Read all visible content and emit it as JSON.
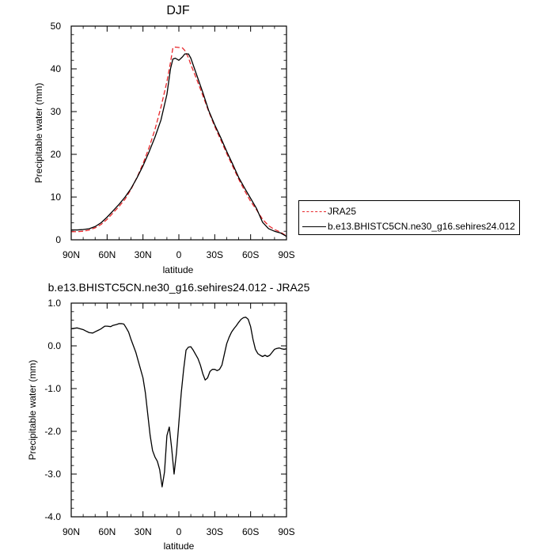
{
  "chart_data": [
    {
      "type": "line",
      "title": "DJF",
      "xlabel": "latitude",
      "ylabel": "Precipitable water (mm)",
      "xlim": [
        90,
        -90
      ],
      "ylim": [
        0,
        50
      ],
      "x_ticks": [
        90,
        60,
        30,
        0,
        -30,
        -60,
        -90
      ],
      "x_tick_labels": [
        "90N",
        "60N",
        "30N",
        "0",
        "30S",
        "60S",
        "90S"
      ],
      "y_ticks": [
        0,
        10,
        20,
        30,
        40,
        50
      ],
      "y_tick_labels": [
        "0",
        "10",
        "20",
        "30",
        "40",
        "50"
      ],
      "legend": "right",
      "series": [
        {
          "name": "JRA25",
          "color": "#e8262a",
          "dash": true,
          "x": [
            90,
            85,
            80,
            75,
            70,
            65,
            60,
            55,
            50,
            45,
            40,
            35,
            30,
            25,
            20,
            15,
            10,
            7,
            5,
            3,
            0,
            -3,
            -5,
            -8,
            -10,
            -15,
            -20,
            -25,
            -30,
            -35,
            -40,
            -45,
            -50,
            -55,
            -60,
            -65,
            -70,
            -75,
            -80,
            -85,
            -90
          ],
          "y": [
            1.9,
            1.9,
            2.0,
            2.3,
            2.8,
            3.6,
            4.8,
            6.3,
            7.8,
            9.5,
            11.8,
            14.6,
            17.8,
            21.5,
            25.8,
            31.0,
            37.0,
            41.5,
            44.9,
            45.1,
            45.0,
            44.9,
            44.3,
            42.6,
            41.0,
            37.5,
            33.8,
            30.0,
            26.5,
            23.4,
            20.2,
            17.2,
            14.2,
            11.5,
            9.0,
            7.0,
            4.8,
            3.3,
            2.4,
            1.8,
            0.9
          ]
        },
        {
          "name": "b.e13.BHISTC5CN.ne30_g16.sehires24.012",
          "color": "#000000",
          "dash": false,
          "x": [
            90,
            85,
            80,
            75,
            70,
            65,
            60,
            55,
            50,
            45,
            40,
            35,
            30,
            25,
            20,
            15,
            10,
            7,
            5,
            3,
            0,
            -3,
            -5,
            -8,
            -10,
            -15,
            -20,
            -25,
            -30,
            -35,
            -40,
            -45,
            -50,
            -55,
            -60,
            -65,
            -70,
            -75,
            -80,
            -85,
            -90
          ],
          "y": [
            2.3,
            2.3,
            2.4,
            2.6,
            3.1,
            4.0,
            5.3,
            6.8,
            8.3,
            10.0,
            12.0,
            14.5,
            17.3,
            20.5,
            24.0,
            28.0,
            34.0,
            40.0,
            42.3,
            42.5,
            42.0,
            42.8,
            43.5,
            43.5,
            42.5,
            38.5,
            34.5,
            30.2,
            26.9,
            23.9,
            20.7,
            17.7,
            14.6,
            12.1,
            9.7,
            7.3,
            4.1,
            2.6,
            2.0,
            1.6,
            0.8
          ]
        }
      ]
    },
    {
      "type": "line",
      "title": "b.e13.BHISTC5CN.ne30_g16.sehires24.012 - JRA25",
      "xlabel": "latitude",
      "ylabel": "Precipitable water (mm)",
      "xlim": [
        90,
        -90
      ],
      "ylim": [
        -4.0,
        1.0
      ],
      "x_ticks": [
        90,
        60,
        30,
        0,
        -30,
        -60,
        -90
      ],
      "x_tick_labels": [
        "90N",
        "60N",
        "30N",
        "0",
        "30S",
        "60S",
        "90S"
      ],
      "y_ticks": [
        -4,
        -3,
        -2,
        -1,
        0,
        1
      ],
      "y_tick_labels": [
        "-4.0",
        "-3.0",
        "-2.0",
        "-1.0",
        "0.0",
        "1.0"
      ],
      "series": [
        {
          "color": "#000000",
          "dash": false,
          "x": [
            90,
            85,
            80,
            78,
            75,
            72,
            70,
            67,
            65,
            62,
            60,
            57,
            55,
            52,
            50,
            48,
            46,
            44,
            42,
            40,
            38,
            36,
            34,
            32,
            30,
            28,
            26,
            24,
            22,
            20,
            18,
            16,
            15,
            14,
            12,
            10,
            8,
            6,
            4,
            2,
            0,
            -2,
            -4,
            -6,
            -8,
            -10,
            -12,
            -14,
            -16,
            -18,
            -20,
            -22,
            -24,
            -26,
            -28,
            -30,
            -32,
            -34,
            -36,
            -38,
            -40,
            -42,
            -44,
            -46,
            -48,
            -50,
            -52,
            -54,
            -56,
            -58,
            -60,
            -62,
            -64,
            -66,
            -68,
            -70,
            -72,
            -74,
            -76,
            -78,
            -80,
            -82,
            -84,
            -86,
            -88,
            -90
          ],
          "y": [
            0.4,
            0.42,
            0.38,
            0.35,
            0.31,
            0.3,
            0.33,
            0.37,
            0.4,
            0.46,
            0.46,
            0.45,
            0.48,
            0.5,
            0.52,
            0.52,
            0.51,
            0.42,
            0.32,
            0.15,
            0.0,
            -0.15,
            -0.35,
            -0.55,
            -0.75,
            -1.1,
            -1.6,
            -2.1,
            -2.45,
            -2.6,
            -2.7,
            -2.9,
            -3.1,
            -3.3,
            -2.95,
            -2.1,
            -1.9,
            -2.4,
            -3.0,
            -2.5,
            -1.8,
            -1.1,
            -0.55,
            -0.1,
            -0.03,
            -0.02,
            -0.1,
            -0.2,
            -0.3,
            -0.45,
            -0.65,
            -0.8,
            -0.75,
            -0.6,
            -0.55,
            -0.55,
            -0.58,
            -0.55,
            -0.45,
            -0.2,
            0.05,
            0.2,
            0.32,
            0.4,
            0.47,
            0.55,
            0.62,
            0.66,
            0.67,
            0.62,
            0.45,
            0.15,
            -0.08,
            -0.18,
            -0.22,
            -0.25,
            -0.22,
            -0.25,
            -0.22,
            -0.15,
            -0.08,
            -0.06,
            -0.05,
            -0.07,
            -0.08,
            -0.07
          ]
        }
      ]
    }
  ]
}
